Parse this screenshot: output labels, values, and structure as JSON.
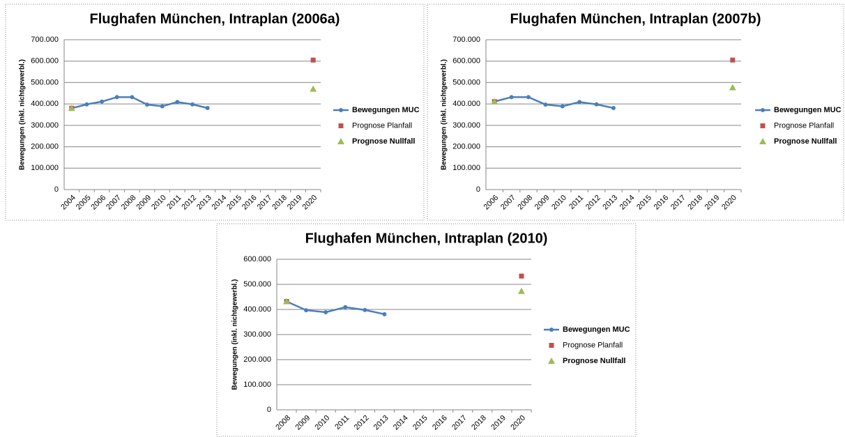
{
  "chart_data": [
    {
      "type": "line",
      "title": "Flughafen München, Intraplan (2006a)",
      "y_label": "Bewegungen (inkl. nichtgewerbl.)",
      "categories": [
        "2004",
        "2005",
        "2006",
        "2007",
        "2008",
        "2009",
        "2010",
        "2011",
        "2012",
        "2013",
        "2014",
        "2015",
        "2016",
        "2017",
        "2018",
        "2019",
        "2020"
      ],
      "ylim": [
        0,
        700000
      ],
      "yticks": [
        0,
        {
          "value": 100000,
          "label": "100.000"
        },
        {
          "value": 200000,
          "label": "200.000"
        },
        {
          "value": 300000,
          "label": "300.000"
        },
        {
          "value": 400000,
          "label": "400.000"
        },
        {
          "value": 500000,
          "label": "500.000"
        },
        {
          "value": 600000,
          "label": "600.000"
        },
        {
          "value": 700000,
          "label": "700.000"
        }
      ],
      "grid": true,
      "series": [
        {
          "name": "Bewegungen MUC",
          "color": "#4a7ebb",
          "marker": "circle",
          "line": true,
          "values": [
            380000,
            398000,
            411000,
            432000,
            432000,
            397000,
            389000,
            409000,
            398000,
            381000,
            null,
            null,
            null,
            null,
            null,
            null,
            null
          ]
        },
        {
          "name": "Prognose Planfall",
          "color": "#c0504d",
          "marker": "square",
          "line": false,
          "values": [
            380000,
            null,
            null,
            null,
            null,
            null,
            null,
            null,
            null,
            null,
            null,
            null,
            null,
            null,
            null,
            null,
            605000
          ]
        },
        {
          "name": "Prognose Nullfall",
          "color": "#9bbb59",
          "marker": "triangle",
          "line": false,
          "values": [
            380000,
            null,
            null,
            null,
            null,
            null,
            null,
            null,
            null,
            null,
            null,
            null,
            null,
            null,
            null,
            null,
            470000
          ]
        }
      ]
    },
    {
      "type": "line",
      "title": "Flughafen München, Intraplan (2007b)",
      "y_label": "Bewegungen (inkl. nichtgewerbl.)",
      "categories": [
        "2006",
        "2007",
        "2008",
        "2009",
        "2010",
        "2011",
        "2012",
        "2013",
        "2014",
        "2015",
        "2016",
        "2017",
        "2018",
        "2019",
        "2020"
      ],
      "ylim": [
        0,
        700000
      ],
      "yticks": [
        0,
        {
          "value": 100000,
          "label": "100.000"
        },
        {
          "value": 200000,
          "label": "200.000"
        },
        {
          "value": 300000,
          "label": "300.000"
        },
        {
          "value": 400000,
          "label": "400.000"
        },
        {
          "value": 500000,
          "label": "500.000"
        },
        {
          "value": 600000,
          "label": "600.000"
        },
        {
          "value": 700000,
          "label": "700.000"
        }
      ],
      "grid": true,
      "series": [
        {
          "name": "Bewegungen MUC",
          "color": "#4a7ebb",
          "marker": "circle",
          "line": true,
          "values": [
            411000,
            432000,
            432000,
            397000,
            389000,
            409000,
            398000,
            381000,
            null,
            null,
            null,
            null,
            null,
            null,
            null
          ]
        },
        {
          "name": "Prognose Planfall",
          "color": "#c0504d",
          "marker": "square",
          "line": false,
          "values": [
            411000,
            null,
            null,
            null,
            null,
            null,
            null,
            null,
            null,
            null,
            null,
            null,
            null,
            null,
            605000
          ]
        },
        {
          "name": "Prognose Nullfall",
          "color": "#9bbb59",
          "marker": "triangle",
          "line": false,
          "values": [
            411000,
            null,
            null,
            null,
            null,
            null,
            null,
            null,
            null,
            null,
            null,
            null,
            null,
            null,
            477000
          ]
        }
      ]
    },
    {
      "type": "line",
      "title": "Flughafen München, Intraplan (2010)",
      "y_label": "Bewegungen (inkl. nichtgewerbl.)",
      "categories": [
        "2008",
        "2009",
        "2010",
        "2011",
        "2012",
        "2013",
        "2014",
        "2015",
        "2016",
        "2017",
        "2018",
        "2019",
        "2020"
      ],
      "ylim": [
        0,
        600000
      ],
      "yticks": [
        0,
        {
          "value": 100000,
          "label": "100.000"
        },
        {
          "value": 200000,
          "label": "200.000"
        },
        {
          "value": 300000,
          "label": "300.000"
        },
        {
          "value": 400000,
          "label": "400.000"
        },
        {
          "value": 500000,
          "label": "500.000"
        },
        {
          "value": 600000,
          "label": "600.000"
        }
      ],
      "grid": true,
      "series": [
        {
          "name": "Bewegungen MUC",
          "color": "#4a7ebb",
          "marker": "circle",
          "line": true,
          "values": [
            432000,
            397000,
            389000,
            409000,
            398000,
            381000,
            null,
            null,
            null,
            null,
            null,
            null,
            null
          ]
        },
        {
          "name": "Prognose Planfall",
          "color": "#c0504d",
          "marker": "square",
          "line": false,
          "values": [
            432000,
            null,
            null,
            null,
            null,
            null,
            null,
            null,
            null,
            null,
            null,
            null,
            533000
          ]
        },
        {
          "name": "Prognose Nullfall",
          "color": "#9bbb59",
          "marker": "triangle",
          "line": false,
          "values": [
            432000,
            null,
            null,
            null,
            null,
            null,
            null,
            null,
            null,
            null,
            null,
            null,
            473000
          ]
        }
      ]
    }
  ]
}
